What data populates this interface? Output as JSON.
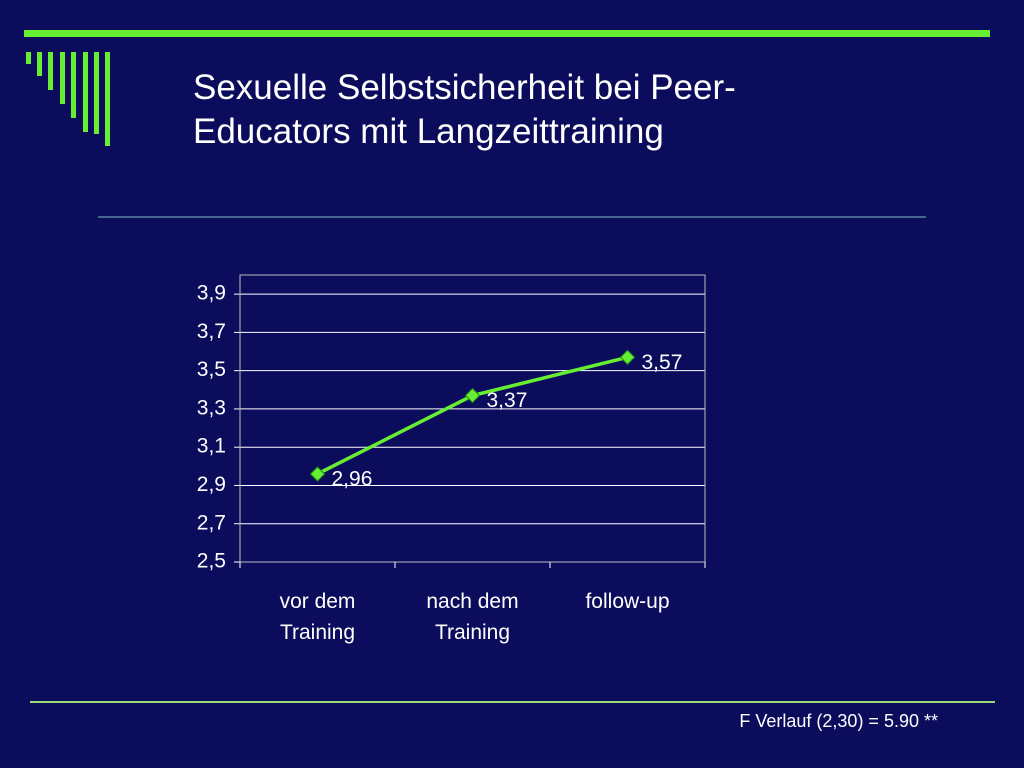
{
  "chart_data": {
    "type": "line",
    "title": "Sexuelle Selbstsicherheit bei Peer-Educators mit Langzeittraining",
    "annotation": "F Verlauf (2,30) = 5.90 **",
    "categories": [
      "vor dem Training",
      "nach dem Training",
      "follow-up"
    ],
    "values": [
      2.96,
      3.37,
      3.57
    ],
    "value_labels": [
      "2,96",
      "3,37",
      "3,57"
    ],
    "color": "#66ee33",
    "ylim": [
      2.5,
      4.0
    ],
    "yticks": [
      {
        "value": 2.5,
        "label": "2,5"
      },
      {
        "value": 2.7,
        "label": "2,7"
      },
      {
        "value": 2.9,
        "label": "2,9"
      },
      {
        "value": 3.1,
        "label": "3,1"
      },
      {
        "value": 3.3,
        "label": "3,3"
      },
      {
        "value": 3.5,
        "label": "3,5"
      },
      {
        "value": 3.7,
        "label": "3,7"
      },
      {
        "value": 3.9,
        "label": "3,9"
      }
    ],
    "grid": true
  }
}
